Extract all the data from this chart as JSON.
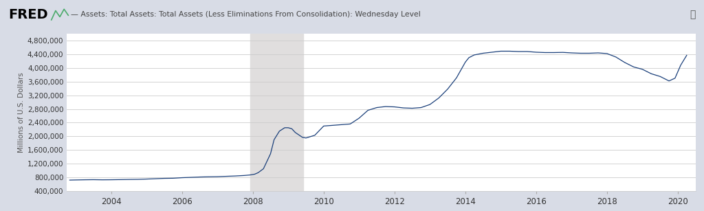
{
  "title": "Assets: Total Assets: Total Assets (Less Eliminations From Consolidation): Wednesday Level",
  "ylabel": "Millions of U.S. Dollars",
  "line_color": "#1a3f7a",
  "outer_background": "#d8dce6",
  "plot_bg_color": "#ffffff",
  "recession_color": "#e0dede",
  "recession_start": 2007.92,
  "recession_end": 2009.42,
  "yticks": [
    400000,
    800000,
    1200000,
    1600000,
    2000000,
    2400000,
    2800000,
    3200000,
    3600000,
    4000000,
    4400000,
    4800000
  ],
  "ytick_labels": [
    "400,000",
    "800,000",
    "1,200,000",
    "1,600,000",
    "2,000,000",
    "2,400,000",
    "2,800,000",
    "3,200,000",
    "3,600,000",
    "4,000,000",
    "4,400,000",
    "4,800,000"
  ],
  "xlim_start": 2002.75,
  "xlim_end": 2020.5,
  "ylim_bottom": 400000,
  "ylim_top": 5000000,
  "xticks": [
    2004,
    2006,
    2008,
    2010,
    2012,
    2014,
    2016,
    2018,
    2020
  ],
  "grid_color": "#cccccc",
  "series": {
    "years": [
      2002.83,
      2003.0,
      2003.25,
      2003.5,
      2003.75,
      2004.0,
      2004.25,
      2004.5,
      2004.75,
      2005.0,
      2005.25,
      2005.5,
      2005.75,
      2006.0,
      2006.25,
      2006.5,
      2006.75,
      2007.0,
      2007.25,
      2007.5,
      2007.75,
      2007.92,
      2008.05,
      2008.15,
      2008.3,
      2008.5,
      2008.6,
      2008.75,
      2008.9,
      2009.0,
      2009.1,
      2009.2,
      2009.4,
      2009.5,
      2009.75,
      2010.0,
      2010.25,
      2010.5,
      2010.75,
      2011.0,
      2011.25,
      2011.5,
      2011.75,
      2012.0,
      2012.25,
      2012.5,
      2012.75,
      2013.0,
      2013.25,
      2013.5,
      2013.75,
      2014.0,
      2014.1,
      2014.25,
      2014.5,
      2014.75,
      2015.0,
      2015.25,
      2015.5,
      2015.75,
      2016.0,
      2016.25,
      2016.5,
      2016.75,
      2017.0,
      2017.25,
      2017.5,
      2017.75,
      2018.0,
      2018.25,
      2018.5,
      2018.75,
      2019.0,
      2019.25,
      2019.5,
      2019.75,
      2019.92,
      2020.08,
      2020.25
    ],
    "values": [
      718000,
      722000,
      727000,
      730000,
      726000,
      728000,
      732000,
      737000,
      740000,
      748000,
      758000,
      768000,
      772000,
      788000,
      798000,
      808000,
      814000,
      818000,
      828000,
      838000,
      852000,
      868000,
      890000,
      935000,
      1050000,
      1490000,
      1900000,
      2150000,
      2250000,
      2250000,
      2220000,
      2110000,
      1970000,
      1950000,
      2030000,
      2300000,
      2320000,
      2340000,
      2360000,
      2530000,
      2760000,
      2840000,
      2870000,
      2860000,
      2830000,
      2820000,
      2840000,
      2930000,
      3120000,
      3380000,
      3710000,
      4170000,
      4300000,
      4380000,
      4430000,
      4460000,
      4490000,
      4490000,
      4480000,
      4480000,
      4460000,
      4450000,
      4450000,
      4455000,
      4440000,
      4430000,
      4430000,
      4440000,
      4420000,
      4320000,
      4160000,
      4030000,
      3960000,
      3830000,
      3750000,
      3620000,
      3700000,
      4080000,
      4370000
    ]
  }
}
